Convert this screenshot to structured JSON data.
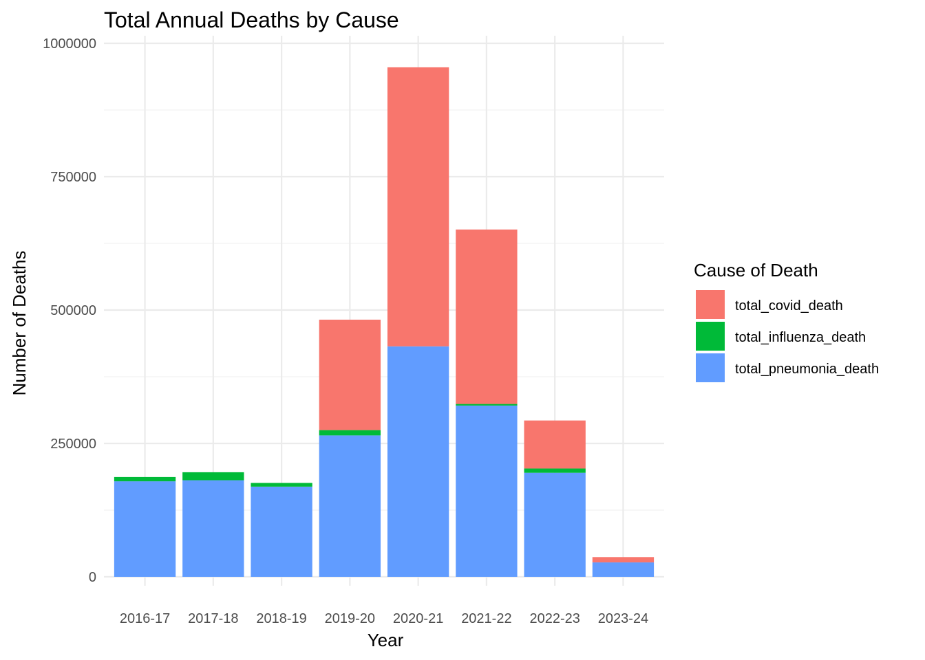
{
  "chart_data": {
    "type": "bar",
    "stacked": true,
    "title": "Total Annual Deaths by Cause",
    "xlabel": "Year",
    "ylabel": "Number of Deaths",
    "categories": [
      "2016-17",
      "2017-18",
      "2018-19",
      "2019-20",
      "2020-21",
      "2021-22",
      "2022-23",
      "2023-24"
    ],
    "ylim": [
      0,
      1000000
    ],
    "yticks": [
      0,
      250000,
      500000,
      750000,
      1000000
    ],
    "ytick_labels": [
      "0",
      "250000",
      "500000",
      "750000",
      "1000000"
    ],
    "grid": true,
    "legend": {
      "title": "Cause of Death",
      "position": "right"
    },
    "series": [
      {
        "name": "total_covid_death",
        "color": "#F8766D",
        "values": [
          0,
          0,
          0,
          207000,
          523000,
          327000,
          90000,
          10000
        ]
      },
      {
        "name": "total_influenza_death",
        "color": "#00BA38",
        "values": [
          8000,
          15000,
          7000,
          10000,
          0,
          3000,
          8000,
          0
        ]
      },
      {
        "name": "total_pneumonia_death",
        "color": "#619CFF",
        "values": [
          179000,
          181000,
          169000,
          265000,
          432000,
          321000,
          195000,
          27000
        ]
      }
    ],
    "stack_order_bottom_to_top": [
      "total_pneumonia_death",
      "total_influenza_death",
      "total_covid_death"
    ]
  }
}
